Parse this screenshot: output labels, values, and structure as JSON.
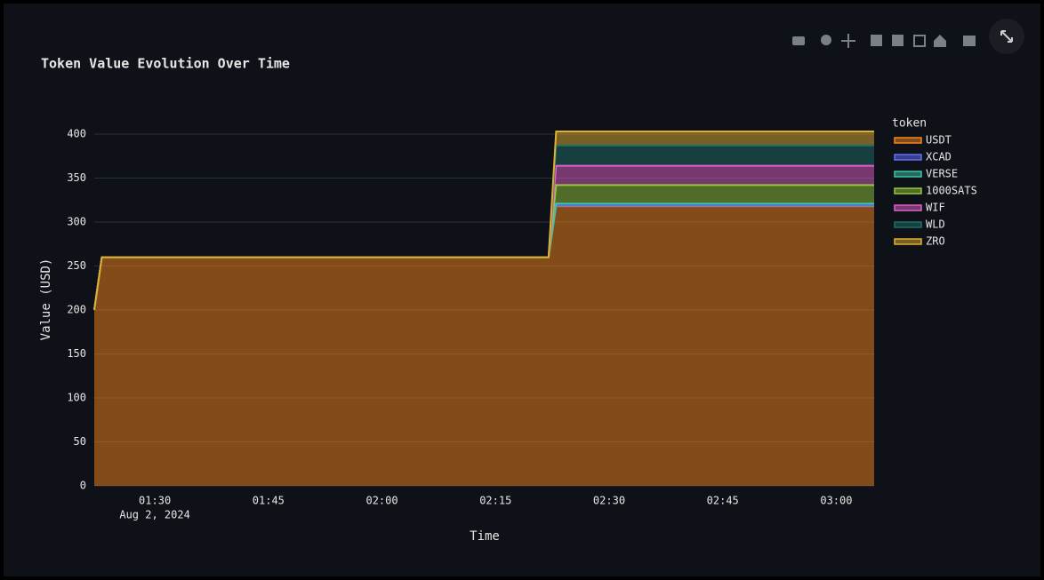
{
  "chart_data": {
    "type": "stacked_area",
    "title": "Token Value Evolution Over Time",
    "x_label": "Time",
    "y_label": "Value (USD)",
    "legend_title": "token",
    "x_date_label": "Aug 2, 2024",
    "x": [
      "2024-08-02 01:22",
      "2024-08-02 01:23",
      "2024-08-02 02:22",
      "2024-08-02 02:23",
      "2024-08-02 02:30",
      "2024-08-02 02:45",
      "2024-08-02 03:00",
      "2024-08-02 03:05"
    ],
    "xlim": [
      "2024-08-02 01:22",
      "2024-08-02 03:05"
    ],
    "xticks": [
      {
        "value": "2024-08-02 01:30",
        "label": "01:30"
      },
      {
        "value": "2024-08-02 01:45",
        "label": "01:45"
      },
      {
        "value": "2024-08-02 02:00",
        "label": "02:00"
      },
      {
        "value": "2024-08-02 02:15",
        "label": "02:15"
      },
      {
        "value": "2024-08-02 02:30",
        "label": "02:30"
      },
      {
        "value": "2024-08-02 02:45",
        "label": "02:45"
      },
      {
        "value": "2024-08-02 03:00",
        "label": "03:00"
      }
    ],
    "ylim": [
      0,
      410
    ],
    "yticks": [
      0,
      50,
      100,
      150,
      200,
      250,
      300,
      350,
      400
    ],
    "grid": true,
    "series": [
      {
        "name": "USDT",
        "color": "#f58518",
        "values": [
          200,
          260,
          260,
          318,
          318,
          318,
          318,
          318
        ]
      },
      {
        "name": "XCAD",
        "color": "#636efa",
        "values": [
          0,
          0,
          0,
          0.5,
          0.5,
          0.5,
          0.5,
          0.5
        ]
      },
      {
        "name": "VERSE",
        "color": "#3cc4a8",
        "values": [
          0,
          0,
          0,
          2.5,
          2.5,
          2.5,
          2.5,
          2.5
        ]
      },
      {
        "name": "1000SATS",
        "color": "#94c83c",
        "values": [
          0,
          0,
          0,
          21,
          21,
          21,
          21,
          21
        ]
      },
      {
        "name": "WIF",
        "color": "#e060c8",
        "values": [
          0,
          0,
          0,
          22,
          22,
          22,
          22,
          22
        ]
      },
      {
        "name": "WLD",
        "color": "#1f6e68",
        "values": [
          0,
          0,
          0,
          23,
          23,
          23,
          23,
          23
        ]
      },
      {
        "name": "ZRO",
        "color": "#e0b030",
        "values": [
          0,
          0,
          0,
          16,
          16,
          16,
          16,
          16
        ]
      }
    ]
  }
}
